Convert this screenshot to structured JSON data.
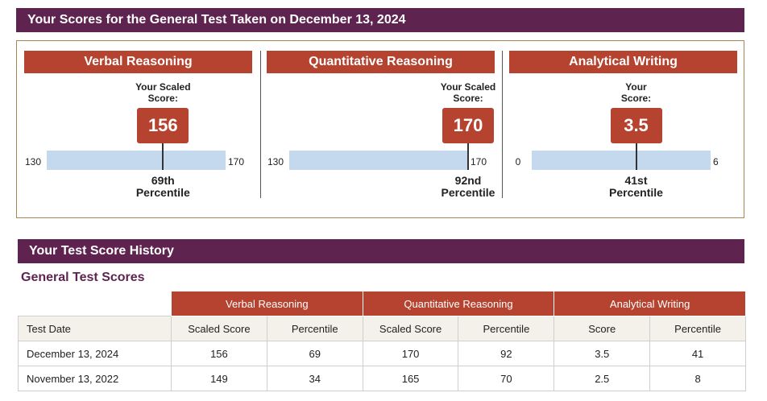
{
  "header": {
    "title": "Your Scores for the General Test Taken on December 13, 2024"
  },
  "scores": [
    {
      "section": "Verbal Reasoning",
      "score_label": [
        "Your Scaled",
        "Score:"
      ],
      "score": 156,
      "min": 130,
      "max": 170,
      "percentile": "69th",
      "percentile_label": "Percentile"
    },
    {
      "section": "Quantitative Reasoning",
      "score_label": [
        "Your Scaled",
        "Score:"
      ],
      "score": 170,
      "min": 130,
      "max": 170,
      "percentile": "92nd",
      "percentile_label": "Percentile"
    },
    {
      "section": "Analytical Writing",
      "score_label": [
        "Your",
        "Score:"
      ],
      "score": 3.5,
      "min": 0,
      "max": 6,
      "percentile": "41st",
      "percentile_label": "Percentile"
    }
  ],
  "history": {
    "title": "Your Test Score History",
    "subtitle": "General Test Scores",
    "groups": [
      "Verbal Reasoning",
      "Quantitative Reasoning",
      "Analytical Writing"
    ],
    "columns": [
      "Test Date",
      "Scaled Score",
      "Percentile",
      "Scaled Score",
      "Percentile",
      "Score",
      "Percentile"
    ],
    "rows": [
      [
        "December 13, 2024",
        156,
        69,
        170,
        92,
        3.5,
        41
      ],
      [
        "November 13, 2022",
        149,
        34,
        165,
        70,
        2.5,
        8
      ]
    ]
  }
}
